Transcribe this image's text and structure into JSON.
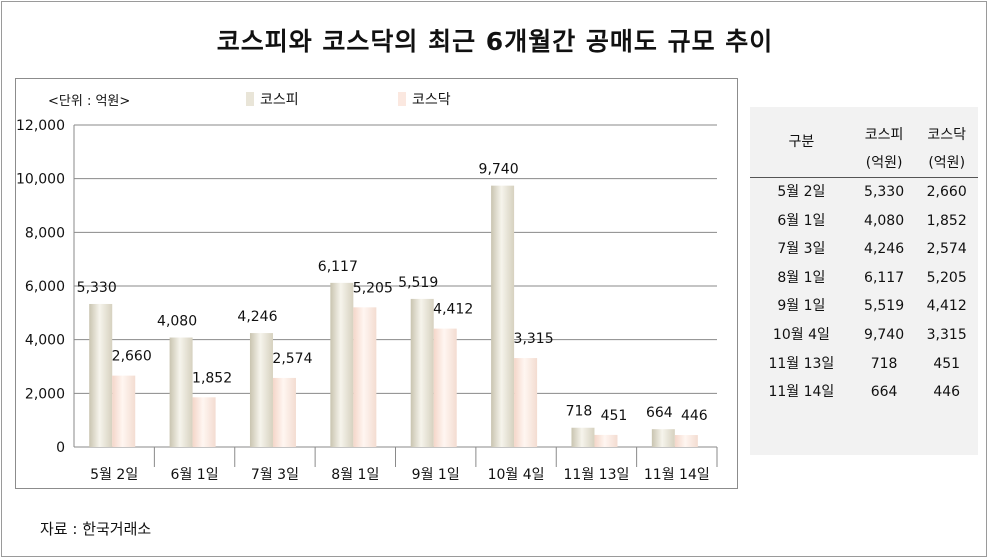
{
  "title": "코스피와 코스닥의 최근 6개월간 공매도 규모 추이",
  "unit_label": "<단위 : 억원>",
  "source": "자료 : 한국거래소",
  "colors": {
    "kospi": "#e9e5d8",
    "kosdaq": "#fbe8e0"
  },
  "chart_data": {
    "type": "bar",
    "categories": [
      "5월 2일",
      "6월 1일",
      "7월 3일",
      "8월 1일",
      "9월 1일",
      "10월 4일",
      "11월 13일",
      "11월 14일"
    ],
    "series": [
      {
        "name": "코스피",
        "values": [
          5330,
          4080,
          4246,
          6117,
          5519,
          9740,
          718,
          664
        ]
      },
      {
        "name": "코스닥",
        "values": [
          2660,
          1852,
          2574,
          5205,
          4412,
          3315,
          451,
          446
        ]
      }
    ],
    "data_labels": [
      [
        "5,330",
        "4,080",
        "4,246",
        "6,117",
        "5,519",
        "9,740",
        "718",
        "664"
      ],
      [
        "2,660",
        "1,852",
        "2,574",
        "5,205",
        "4,412",
        "3,315",
        "451",
        "446"
      ]
    ],
    "ylim": [
      0,
      12000
    ],
    "yticks": [
      0,
      2000,
      4000,
      6000,
      8000,
      10000,
      12000
    ],
    "ytick_labels": [
      "0",
      "2,000",
      "4,000",
      "6,000",
      "8,000",
      "10,000",
      "12,000"
    ],
    "grid": true,
    "legend": "top"
  },
  "table": {
    "headers": [
      [
        "구분"
      ],
      [
        "코스피",
        "(억원)"
      ],
      [
        "코스닥",
        "(억원)"
      ]
    ],
    "rows": [
      [
        "5월 2일",
        "5,330",
        "2,660"
      ],
      [
        "6월 1일",
        "4,080",
        "1,852"
      ],
      [
        "7월 3일",
        "4,246",
        "2,574"
      ],
      [
        "8월 1일",
        "6,117",
        "5,205"
      ],
      [
        "9월 1일",
        "5,519",
        "4,412"
      ],
      [
        "10월 4일",
        "9,740",
        "3,315"
      ],
      [
        "11월 13일",
        "718",
        "451"
      ],
      [
        "11월 14일",
        "664",
        "446"
      ]
    ]
  }
}
